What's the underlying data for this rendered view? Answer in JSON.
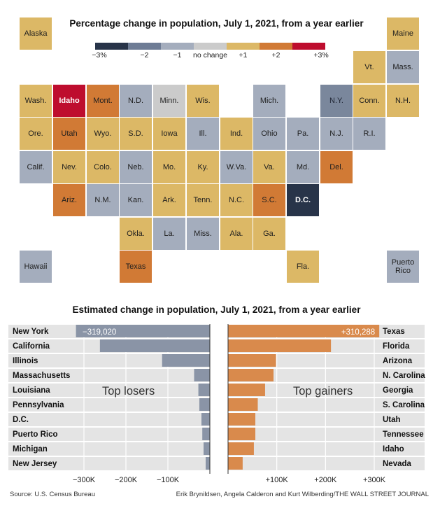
{
  "map_title": "Percentage change in population, July 1, 2021, from a year earlier",
  "legend": {
    "labels": [
      "−3%",
      "−2",
      "−1",
      "no change",
      "+1",
      "+2",
      "+3%"
    ],
    "colors": [
      "#283449",
      "#6e7c95",
      "#a4adbd",
      "#cbcbcb",
      "#dcb866",
      "#d17a35",
      "#be0d2e"
    ]
  },
  "colors": {
    "very_neg": "#283449",
    "neg": "#7a879c",
    "slight_neg": "#a4adbd",
    "neutral": "#cbcbcb",
    "slight_pos": "#dcb866",
    "pos": "#d17a35",
    "very_pos": "#be0d2e",
    "loser_bar": "#8a94a6",
    "gainer_bar": "#d98a4c",
    "row_bg": "#e4e4e4"
  },
  "states": [
    {
      "label": "Alaska",
      "cat": "slight_pos"
    },
    {
      "label": "Maine",
      "cat": "slight_pos"
    },
    {
      "label": "Vt.",
      "cat": "slight_pos"
    },
    {
      "label": "Mass.",
      "cat": "slight_neg"
    },
    {
      "label": "Wash.",
      "cat": "slight_pos"
    },
    {
      "label": "Idaho",
      "cat": "very_pos"
    },
    {
      "label": "Mont.",
      "cat": "pos"
    },
    {
      "label": "N.D.",
      "cat": "slight_neg"
    },
    {
      "label": "Minn.",
      "cat": "neutral"
    },
    {
      "label": "Wis.",
      "cat": "slight_pos"
    },
    {
      "label": "Mich.",
      "cat": "slight_neg"
    },
    {
      "label": "N.Y.",
      "cat": "neg"
    },
    {
      "label": "Conn.",
      "cat": "slight_pos"
    },
    {
      "label": "N.H.",
      "cat": "slight_pos"
    },
    {
      "label": "Ore.",
      "cat": "slight_pos"
    },
    {
      "label": "Utah",
      "cat": "pos"
    },
    {
      "label": "Wyo.",
      "cat": "slight_pos"
    },
    {
      "label": "S.D.",
      "cat": "slight_pos"
    },
    {
      "label": "Iowa",
      "cat": "slight_pos"
    },
    {
      "label": "Ill.",
      "cat": "slight_neg"
    },
    {
      "label": "Ind.",
      "cat": "slight_pos"
    },
    {
      "label": "Ohio",
      "cat": "slight_neg"
    },
    {
      "label": "Pa.",
      "cat": "slight_neg"
    },
    {
      "label": "N.J.",
      "cat": "slight_neg"
    },
    {
      "label": "R.I.",
      "cat": "slight_neg"
    },
    {
      "label": "Calif.",
      "cat": "slight_neg"
    },
    {
      "label": "Nev.",
      "cat": "slight_pos"
    },
    {
      "label": "Colo.",
      "cat": "slight_pos"
    },
    {
      "label": "Neb.",
      "cat": "slight_neg"
    },
    {
      "label": "Mo.",
      "cat": "slight_pos"
    },
    {
      "label": "Ky.",
      "cat": "slight_pos"
    },
    {
      "label": "W.Va.",
      "cat": "slight_neg"
    },
    {
      "label": "Va.",
      "cat": "slight_pos"
    },
    {
      "label": "Md.",
      "cat": "slight_neg"
    },
    {
      "label": "Del.",
      "cat": "pos"
    },
    {
      "label": "Ariz.",
      "cat": "pos"
    },
    {
      "label": "N.M.",
      "cat": "slight_neg"
    },
    {
      "label": "Kan.",
      "cat": "slight_neg"
    },
    {
      "label": "Ark.",
      "cat": "slight_pos"
    },
    {
      "label": "Tenn.",
      "cat": "slight_pos"
    },
    {
      "label": "N.C.",
      "cat": "slight_pos"
    },
    {
      "label": "S.C.",
      "cat": "pos"
    },
    {
      "label": "D.C.",
      "cat": "very_neg"
    },
    {
      "label": "Okla.",
      "cat": "slight_pos"
    },
    {
      "label": "La.",
      "cat": "slight_neg"
    },
    {
      "label": "Miss.",
      "cat": "slight_neg"
    },
    {
      "label": "Ala.",
      "cat": "slight_pos"
    },
    {
      "label": "Ga.",
      "cat": "slight_pos"
    },
    {
      "label": "Hawaii",
      "cat": "slight_neg"
    },
    {
      "label": "Texas",
      "cat": "pos"
    },
    {
      "label": "Fla.",
      "cat": "slight_pos"
    },
    {
      "label": "Puerto Rico",
      "cat": "slight_neg"
    }
  ],
  "chart_data": {
    "type": "bar",
    "title": "Estimated change in population, July 1, 2021, from a year earlier",
    "losers": {
      "label": "Top losers",
      "categories": [
        "New York",
        "California",
        "Illinois",
        "Massachusetts",
        "Louisiana",
        "Pennsylvania",
        "D.C.",
        "Puerto Rico",
        "Michigan",
        "New Jersey"
      ],
      "values": [
        -319020,
        -261902,
        -113776,
        -37497,
        -27381,
        -25042,
        -20043,
        -18000,
        -15000,
        -10000
      ],
      "value_label": "−319,020",
      "xlim": [
        -330000,
        0
      ],
      "ticks": [
        -300000,
        -200000,
        -100000
      ],
      "tick_labels": [
        "−300K",
        "−200K",
        "−100K"
      ]
    },
    "gainers": {
      "label": "Top gainers",
      "categories": [
        "Texas",
        "Florida",
        "Arizona",
        "N. Carolina",
        "Georgia",
        "S. Carolina",
        "Utah",
        "Tennessee",
        "Idaho",
        "Nevada"
      ],
      "values": [
        310288,
        211196,
        98330,
        93324,
        76000,
        61000,
        56000,
        56000,
        53000,
        30000
      ],
      "value_label": "+310,288",
      "xlim": [
        0,
        330000
      ],
      "ticks": [
        100000,
        200000,
        300000
      ],
      "tick_labels": [
        "+100K",
        "+200K",
        "+300K"
      ]
    }
  },
  "footer": {
    "source": "Source: U.S. Census Bureau",
    "credit": "Erik Brynildsen, Angela Calderon and Kurt Wilberding/THE WALL STREET JOURNAL"
  }
}
